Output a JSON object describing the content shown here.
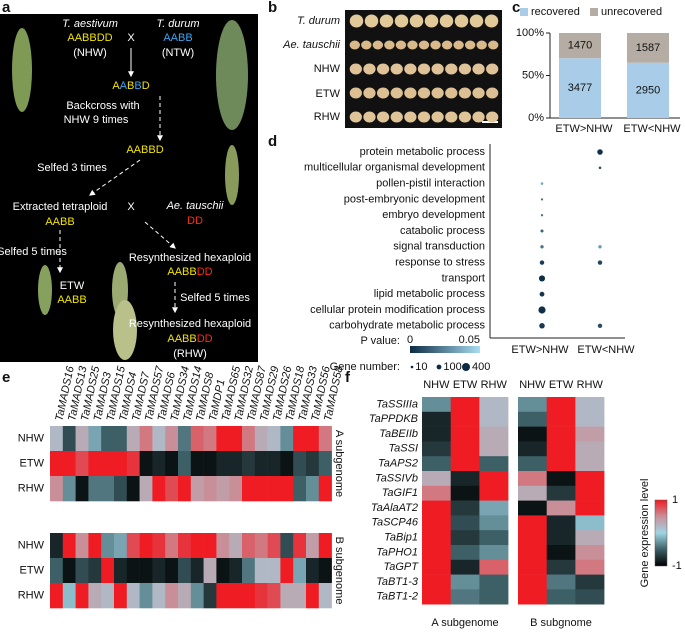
{
  "panel_labels": [
    "a",
    "b",
    "c",
    "d",
    "e",
    "f"
  ],
  "panel_a": {
    "parent1": {
      "name": "T. aestivum",
      "genome": "AABBDD",
      "code": "(NHW)"
    },
    "parent2": {
      "name": "T. durum",
      "genome": "AABB",
      "code": "(NTW)"
    },
    "cross": "X",
    "hybrid": [
      "A",
      "A",
      "B",
      "B",
      "D"
    ],
    "backcross": [
      "Backcross with",
      "NHW 9 times"
    ],
    "backcross_genome": "AABBD",
    "selfed1": "Selfed 3 times",
    "tetraploid": {
      "name": "Extracted tetraploid",
      "genome": "AABB"
    },
    "parent3": {
      "name": "Ae. tauschii",
      "genome": "DD"
    },
    "selfed2": "Selfed 5 times",
    "etw": {
      "name": "ETW",
      "genome": "AABB"
    },
    "resynth1": {
      "name": "Resynthesized hexaploid",
      "genome": [
        "AABB",
        "DD"
      ]
    },
    "selfed3": "Selfed 5 times",
    "resynth2": {
      "name": "Resynthesized hexaploid",
      "genome": [
        "AABB",
        "DD"
      ],
      "code": "(RHW)"
    }
  },
  "panel_b": {
    "rows": [
      "T. durum",
      "Ae. tauschii",
      "NHW",
      "ETW",
      "RHW"
    ]
  },
  "panel_c": {
    "type": "bar",
    "stacked": "percent",
    "categories": [
      "ETW>NHW",
      "ETW<NHW"
    ],
    "series": [
      {
        "name": "recovered",
        "color": "#a9cde8",
        "values": [
          3477,
          2950
        ]
      },
      {
        "name": "unrecovered",
        "color": "#b5ada3",
        "values": [
          1470,
          1587
        ]
      }
    ],
    "ylim": [
      0,
      100
    ],
    "yticks": [
      {
        "value": 0,
        "label": "0%"
      },
      {
        "value": 50,
        "label": "50%"
      },
      {
        "value": 100,
        "label": "100%"
      }
    ]
  },
  "panel_d": {
    "type": "dot",
    "categories": [
      "protein metabolic process",
      "multicellular organismal development",
      "pollen-pistil interaction",
      "post-embryonic development",
      "embryo development",
      "catabolic process",
      "signal transduction",
      "response to stress",
      "transport",
      "lipid metabolic process",
      "cellular protein modification process",
      "carbohydrate metabolic process"
    ],
    "groups": [
      "ETW>NHW",
      "ETW<NHW"
    ],
    "gene_numbers": [
      [
        null,
        null,
        10,
        5,
        5,
        20,
        30,
        80,
        200,
        100,
        300,
        150
      ],
      [
        150,
        10,
        null,
        null,
        null,
        null,
        30,
        80,
        null,
        null,
        null,
        80
      ]
    ],
    "p_values": [
      [
        null,
        null,
        0.035,
        0.02,
        0.02,
        0.015,
        0.02,
        0.005,
        0.001,
        0.003,
        0.001,
        0.004
      ],
      [
        0.002,
        0.01,
        null,
        null,
        null,
        null,
        0.03,
        0.008,
        null,
        null,
        null,
        0.01
      ]
    ],
    "p_legend": "P value:",
    "p_lim": [
      0,
      0.05
    ],
    "p_ticks": [
      0,
      0.05
    ],
    "p_colors": [
      "#0c2a44",
      "#a8def2"
    ],
    "size_legend": "Gene number:",
    "size_ticks": [
      10,
      100,
      400
    ],
    "color": "#0c2a44"
  },
  "panel_e": {
    "type": "heatmap",
    "genes": [
      "TaMADS16",
      "TaMADS13",
      "TaMADS25",
      "TaMADS3",
      "TaMADS15",
      "TaMADS4",
      "TaMADS7",
      "TaMADS57",
      "TaMADS6",
      "TaMADS34",
      "TaMADS14",
      "TaMADS8",
      "TaMDP1",
      "TaMADS65",
      "TaMADS32",
      "TaMADS87",
      "TaMADS29",
      "TaMADS26",
      "TaMADS18",
      "TaMADS33",
      "TaMADS56",
      "TaMADS58"
    ],
    "row_labels": [
      "NHW",
      "ETW",
      "RHW"
    ],
    "blocks": [
      {
        "name": "A subgenome",
        "values": [
          [
            0.2,
            -0.6,
            0.3,
            -0.2,
            -0.5,
            -0.5,
            0.3,
            0.6,
            0.2,
            0.5,
            -0.4,
            0.7,
            0.6,
            1,
            1,
            0.6,
            0.3,
            0.2,
            -0.3,
            1,
            1,
            0.6
          ],
          [
            1,
            1,
            0.8,
            1,
            1,
            1,
            0.9,
            -0.9,
            -0.8,
            -0.9,
            -0.5,
            -0.9,
            -0.9,
            -0.8,
            -0.8,
            -0.7,
            -0.8,
            -0.8,
            -0.9,
            -0.6,
            -0.7,
            -0.5
          ],
          [
            0.5,
            -0.3,
            -0.9,
            -0.4,
            -0.4,
            -0.6,
            -0.9,
            0.3,
            1,
            0.8,
            1,
            0.4,
            0.5,
            0.4,
            0.5,
            1,
            1,
            1,
            1,
            -0.5,
            -0.3,
            1
          ]
        ]
      },
      {
        "name": "B subgenome",
        "values": [
          [
            -0.8,
            1,
            0.5,
            1,
            -0.3,
            -0.2,
            0.8,
            1,
            0.9,
            0.6,
            0.9,
            1,
            1,
            0.5,
            0.3,
            0.7,
            0.6,
            0.8,
            -0.6,
            0.9,
            0.4,
            1
          ],
          [
            -0.5,
            -0.9,
            -0.6,
            -0.7,
            1,
            -0.8,
            -0.9,
            -0.9,
            -0.8,
            -0.9,
            -0.6,
            -0.8,
            0.3,
            -0.9,
            -0.8,
            -0.4,
            0.2,
            0.2,
            1,
            -0.2,
            -0.8,
            -0.9
          ],
          [
            1,
            -0.1,
            1,
            0.3,
            0.2,
            1,
            0.2,
            -0.3,
            0.2,
            0.5,
            0.3,
            -0.3,
            -0.7,
            1,
            1,
            1,
            0.9,
            0.8,
            0.3,
            0.3,
            1,
            0.2
          ]
        ]
      }
    ],
    "color_range": [
      -1,
      1
    ],
    "colormap": [
      "#000000",
      "#3d5f66",
      "#9fd4e3",
      "#c98f98",
      "#ef1c24"
    ]
  },
  "panel_f": {
    "type": "heatmap",
    "genes": [
      "TaSSIIIa",
      "TaPPDKB",
      "TaBEIIb",
      "TaSSI",
      "TaAPS2",
      "TaSSIVb",
      "TaGIF1",
      "TaAlaAT2",
      "TaSCP46",
      "TaBip1",
      "TaPHO1",
      "TaGPT",
      "TaBT1-3",
      "TaBT1-2"
    ],
    "col_labels": [
      "NHW",
      "ETW",
      "RHW"
    ],
    "blocks": [
      {
        "name": "A subgenome",
        "values": [
          [
            -0.3,
            1,
            0.2
          ],
          [
            -0.8,
            1,
            0.2
          ],
          [
            -0.8,
            1,
            0.3
          ],
          [
            -0.7,
            1,
            0.3
          ],
          [
            -0.5,
            1,
            -0.5
          ],
          [
            0.3,
            -0.8,
            1
          ],
          [
            0.6,
            -0.9,
            1
          ],
          [
            1,
            -0.7,
            -0.2
          ],
          [
            1,
            -0.6,
            -0.3
          ],
          [
            1,
            -0.7,
            -0.5
          ],
          [
            1,
            -0.5,
            -0.3
          ],
          [
            1,
            -0.8,
            0.7
          ],
          [
            1,
            -0.3,
            -0.5
          ],
          [
            1,
            -0.4,
            -0.5
          ]
        ]
      },
      {
        "name": "B subgnome",
        "values": [
          [
            -0.3,
            1,
            0.2
          ],
          [
            -0.5,
            1,
            0.2
          ],
          [
            -0.9,
            1,
            0.4
          ],
          [
            -0.8,
            1,
            0.3
          ],
          [
            -0.5,
            1,
            0.3
          ],
          [
            0.6,
            -0.9,
            1
          ],
          [
            0.3,
            -0.7,
            1
          ],
          [
            -0.9,
            0.5,
            1
          ],
          [
            1,
            -0.8,
            -0.1
          ],
          [
            1,
            -0.8,
            0.3
          ],
          [
            1,
            -0.9,
            0.5
          ],
          [
            1,
            -0.7,
            0.6
          ],
          [
            1,
            -0.4,
            -0.7
          ],
          [
            1,
            -0.5,
            -0.6
          ]
        ]
      }
    ],
    "legend_title": "Gene expression level",
    "color_range": [
      -1,
      1
    ],
    "colormap": [
      "#000000",
      "#3d5f66",
      "#9fd4e3",
      "#c98f98",
      "#ef1c24"
    ]
  }
}
